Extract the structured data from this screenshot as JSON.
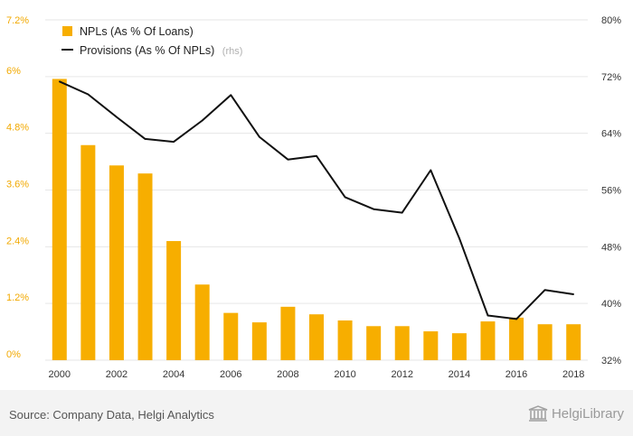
{
  "colors": {
    "bar": "#f7ae00",
    "line": "#111111",
    "grid": "#e6e6e6",
    "left_axis_text": "#f2a900"
  },
  "chart_data": {
    "type": "bar+line",
    "categories": [
      "2000",
      "2001",
      "2002",
      "2003",
      "2004",
      "2005",
      "2006",
      "2007",
      "2008",
      "2009",
      "2010",
      "2011",
      "2012",
      "2013",
      "2014",
      "2015",
      "2016",
      "2017",
      "2018"
    ],
    "x_tick_labels": [
      "2000",
      "2002",
      "2004",
      "2006",
      "2008",
      "2010",
      "2012",
      "2014",
      "2016",
      "2018"
    ],
    "series": [
      {
        "name": "NPLs (As % Of Loans)",
        "type": "bar",
        "axis": "left",
        "values": [
          5.95,
          4.55,
          4.12,
          3.95,
          2.52,
          1.6,
          1.0,
          0.8,
          1.13,
          0.97,
          0.84,
          0.72,
          0.72,
          0.61,
          0.57,
          0.82,
          0.9,
          0.76,
          0.76
        ]
      },
      {
        "name": "Provisions (As % Of NPLs)",
        "note": "(rhs)",
        "type": "line",
        "axis": "right",
        "values": [
          71.3,
          69.5,
          66.3,
          63.2,
          62.8,
          65.8,
          69.4,
          63.5,
          60.3,
          60.8,
          55.0,
          53.3,
          52.8,
          58.8,
          49.2,
          38.3,
          37.8,
          41.9,
          41.3
        ]
      }
    ],
    "y_left": {
      "min": 0,
      "max": 7.2,
      "ticks": [
        0,
        1.2,
        2.4,
        3.6,
        4.8,
        6.0,
        7.2
      ],
      "tick_labels": [
        "0%",
        "1.2%",
        "2.4%",
        "3.6%",
        "4.8%",
        "6%",
        "7.2%"
      ]
    },
    "y_right": {
      "min": 32,
      "max": 80,
      "ticks": [
        32,
        40,
        48,
        56,
        64,
        72,
        80
      ],
      "tick_labels": [
        "32%",
        "40%",
        "48%",
        "56%",
        "64%",
        "72%",
        "80%"
      ]
    },
    "grid": true,
    "legend_position": "top-left"
  },
  "footer": {
    "source": "Source: Company Data, Helgi Analytics",
    "brand": "HelgiLibrary",
    "brand_icon": "library-building-icon"
  }
}
